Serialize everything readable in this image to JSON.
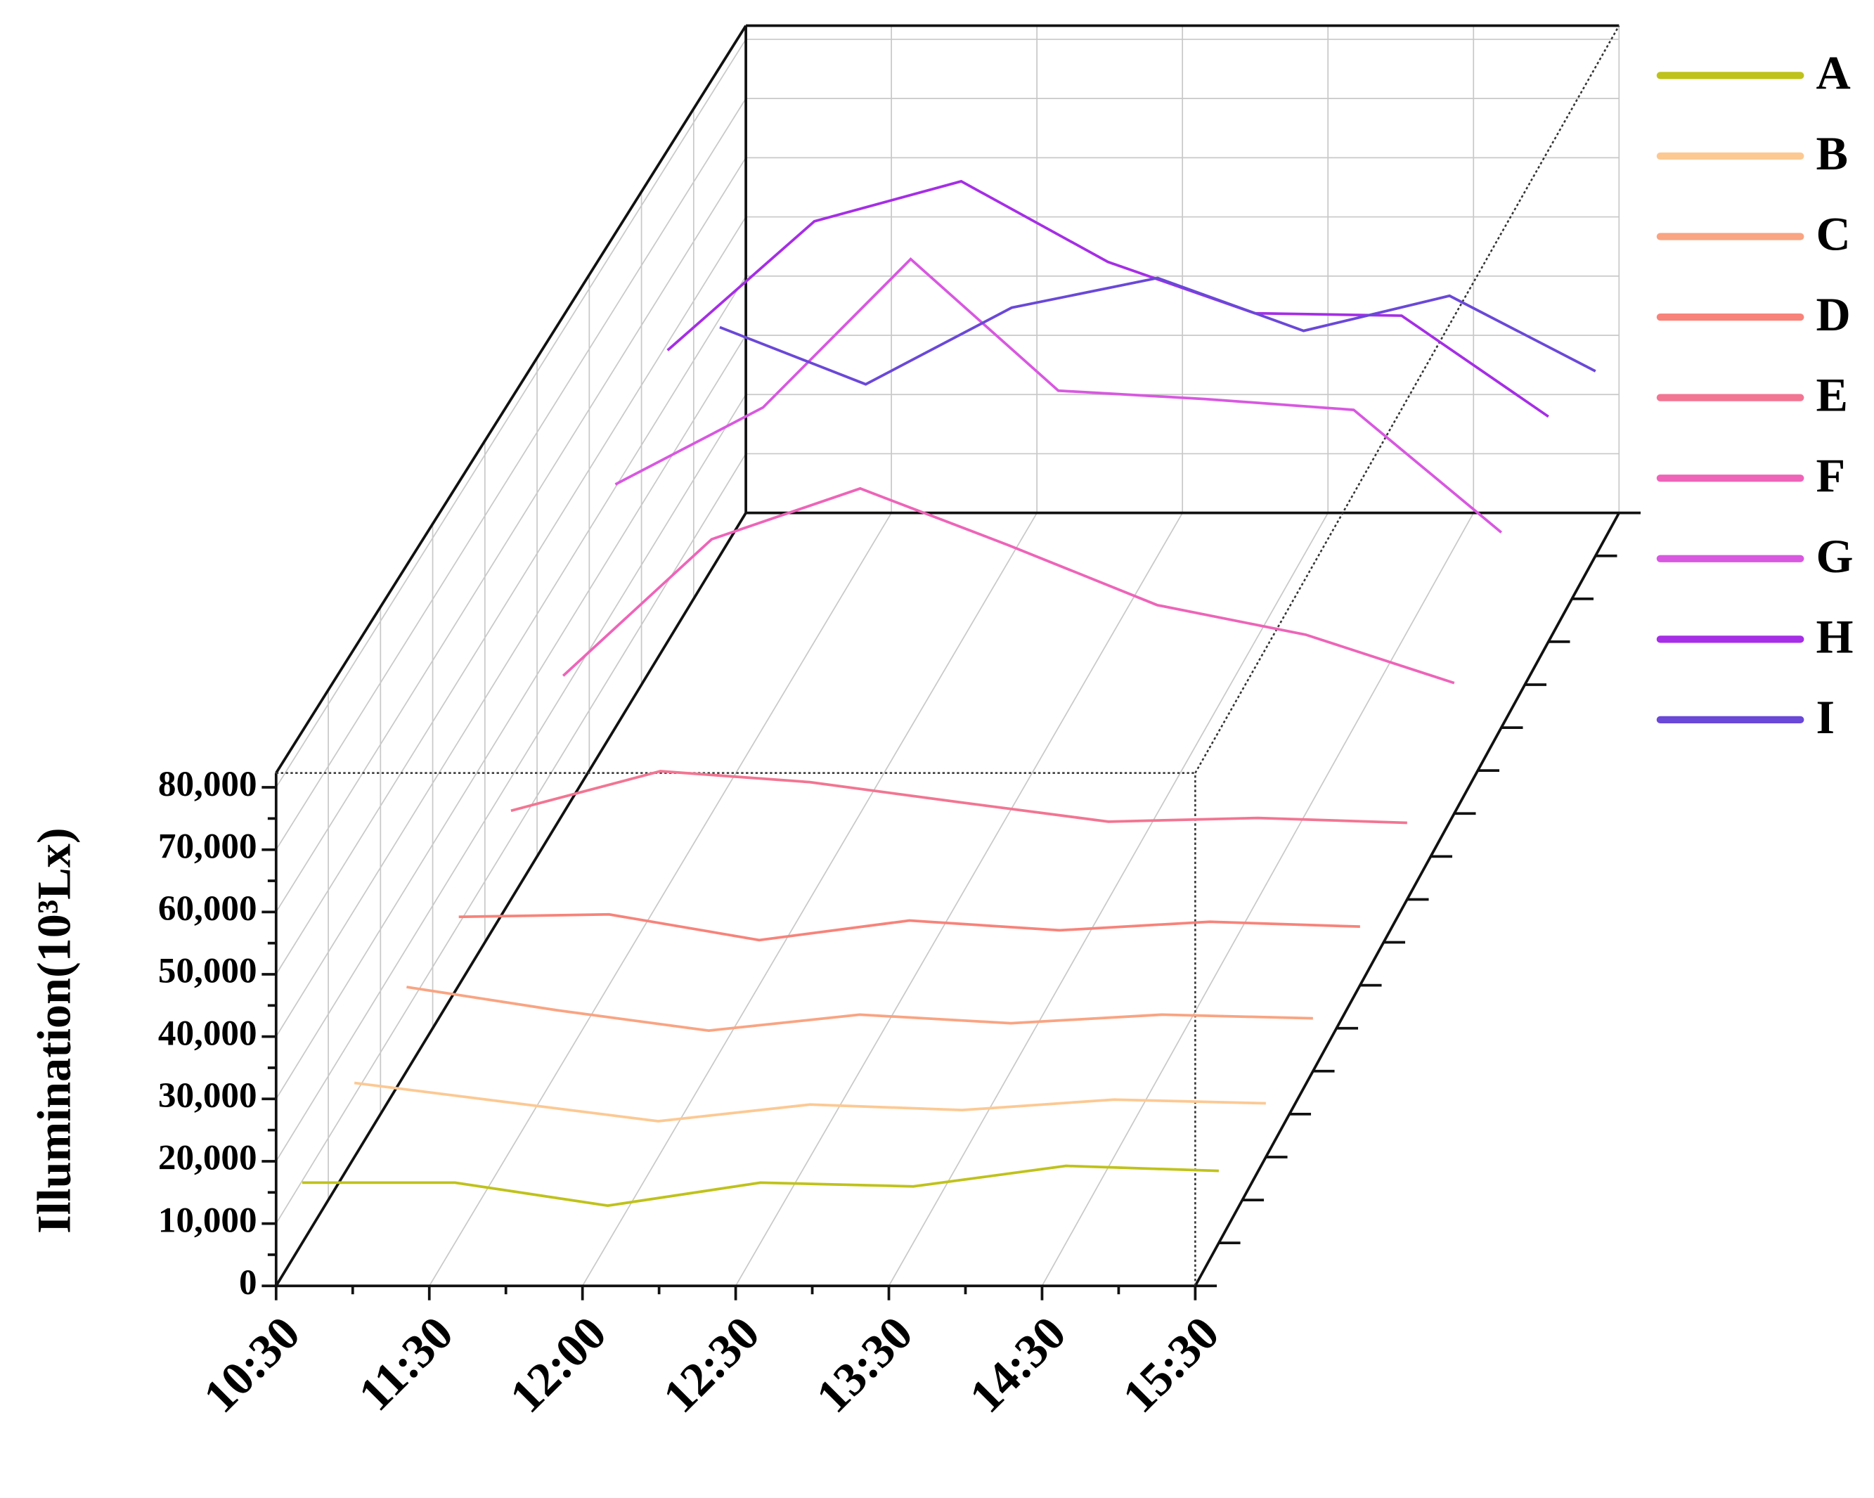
{
  "chart_data": {
    "type": "line3d",
    "y_label": "Illumination(10³Lx)",
    "categories": [
      "10:30",
      "11:30",
      "12:00",
      "12:30",
      "13:30",
      "14:30",
      "15:30"
    ],
    "ylim": [
      0,
      80000
    ],
    "yticks": [
      0,
      {
        "value": 10000,
        "label": "10,000"
      },
      {
        "value": 20000,
        "label": "20,000"
      },
      {
        "value": 30000,
        "label": "30,000"
      },
      {
        "value": 40000,
        "label": "40,000"
      },
      {
        "value": 50000,
        "label": "50,000"
      },
      {
        "value": 60000,
        "label": "60,000"
      },
      {
        "value": 70000,
        "label": "70,000"
      },
      {
        "value": 80000,
        "label": "80,000"
      }
    ],
    "grid": true,
    "legend": "right",
    "series": [
      {
        "name": "A",
        "color": "#bfc21a",
        "values": [
          9700,
          9700,
          6000,
          9700,
          9100,
          12400,
          11600
        ]
      },
      {
        "name": "B",
        "color": "#fcc993",
        "values": [
          12000,
          8900,
          5800,
          8500,
          7600,
          9300,
          8700
        ]
      },
      {
        "name": "C",
        "color": "#f9a482",
        "values": [
          13700,
          9900,
          6600,
          9200,
          7800,
          9200,
          8600
        ]
      },
      {
        "name": "D",
        "color": "#f7837a",
        "values": [
          11200,
          11600,
          7400,
          10600,
          9000,
          10400,
          9600
        ]
      },
      {
        "name": "E",
        "color": "#f27592",
        "values": [
          14600,
          21100,
          19300,
          16000,
          12800,
          13400,
          12600
        ]
      },
      {
        "name": "F",
        "color": "#ee64b8",
        "values": [
          22800,
          45400,
          53800,
          44400,
          34500,
          29600,
          21600
        ]
      },
      {
        "name": "G",
        "color": "#d858e0",
        "values": [
          40500,
          53300,
          78000,
          56100,
          54700,
          52900,
          32500
        ]
      },
      {
        "name": "H",
        "color": "#a52ee6",
        "values": [
          48800,
          70400,
          77100,
          63600,
          55000,
          54600,
          37700
        ]
      },
      {
        "name": "I",
        "color": "#6a48d8",
        "values": [
          38500,
          28900,
          41800,
          46800,
          37900,
          43800,
          31100
        ]
      }
    ]
  }
}
